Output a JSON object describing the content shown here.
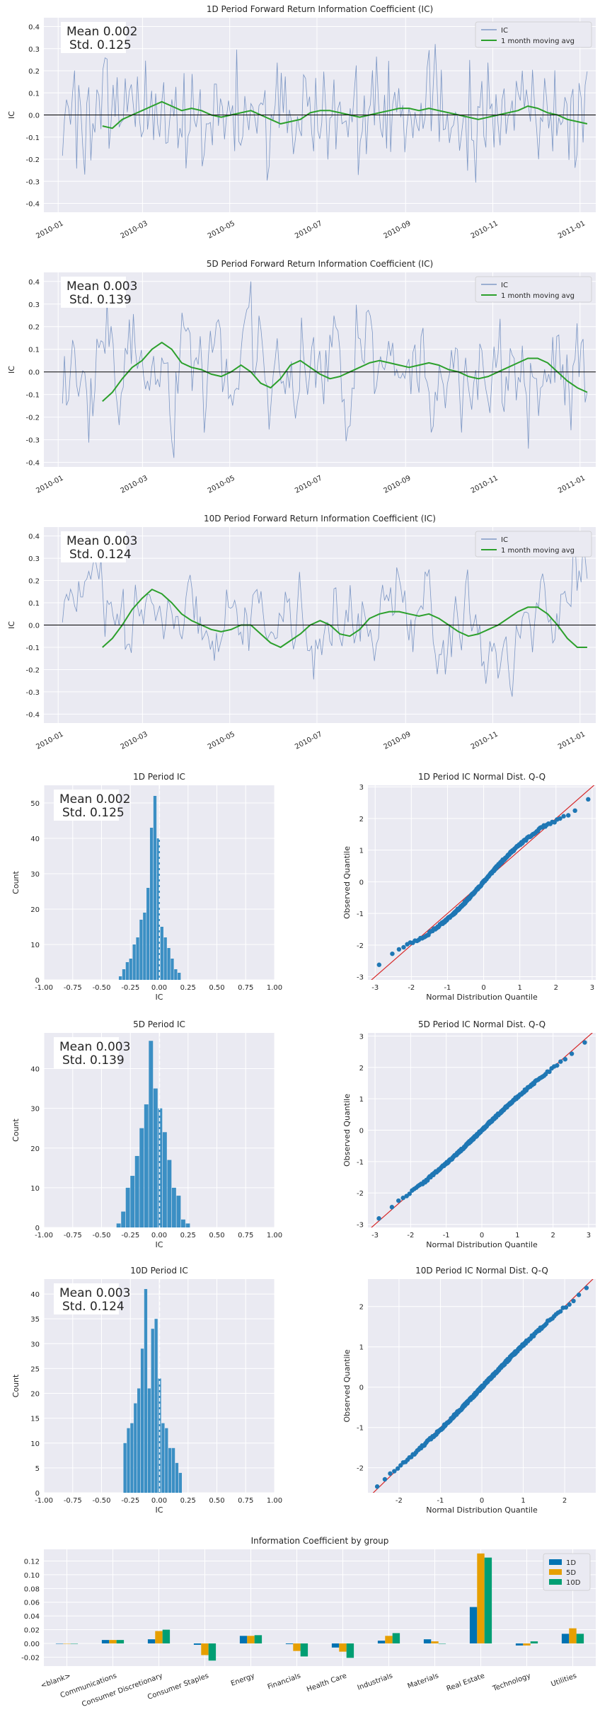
{
  "colors": {
    "background": "#ffffff",
    "axes_face": "#eaeaf2",
    "grid": "#ffffff",
    "ic_line": "#4c72b0",
    "moving_avg": "#2ca02c",
    "zero_line": "#000000",
    "histogram": "#3b8fc4",
    "mean_line": "#ffffff",
    "qq_points": "#1f77b4",
    "qq_reference": "#d62728",
    "text": "#262626",
    "group_1D": "#0072b2",
    "group_5D": "#e69f00",
    "group_10D": "#009e73"
  },
  "chart_data": [
    {
      "id": "ts1",
      "type": "line",
      "title": "1D Period Forward Return Information Coefficient (IC)",
      "ylabel": "IC",
      "xlabel": "",
      "x_range": [
        "2009-12-22",
        "2011-01-12"
      ],
      "x_ticks": [
        "2010-01",
        "2010-03",
        "2010-05",
        "2010-07",
        "2010-09",
        "2010-11",
        "2011-01"
      ],
      "ylim": [
        -0.44,
        0.44
      ],
      "y_ticks": [
        -0.4,
        -0.3,
        -0.2,
        -0.1,
        0.0,
        0.1,
        0.2,
        0.3,
        0.4
      ],
      "legend": [
        "IC",
        "1 month moving avg"
      ],
      "legend_position": "top-right",
      "stats_text": [
        "Mean 0.002",
        "Std. 0.125"
      ],
      "series": [
        {
          "name": "IC",
          "start": "2010-01-04",
          "end": "2011-01-06",
          "count": 260,
          "std": 0.125,
          "mean": 0.002,
          "seed": 101,
          "smooth": 0.0
        },
        {
          "name": "1 month moving avg",
          "start": "2010-02-01",
          "end": "2011-01-06",
          "values": [
            -0.05,
            -0.06,
            -0.02,
            0.0,
            0.02,
            0.04,
            0.06,
            0.04,
            0.02,
            0.03,
            0.02,
            0.0,
            -0.01,
            0.0,
            0.01,
            0.02,
            0.0,
            -0.02,
            -0.04,
            -0.03,
            -0.02,
            0.01,
            0.02,
            0.02,
            0.01,
            0.0,
            -0.01,
            0.0,
            0.01,
            0.02,
            0.03,
            0.03,
            0.02,
            0.03,
            0.02,
            0.01,
            0.0,
            -0.01,
            -0.02,
            -0.01,
            0.0,
            0.01,
            0.02,
            0.04,
            0.03,
            0.01,
            0.0,
            -0.02,
            -0.03,
            -0.04
          ]
        }
      ]
    },
    {
      "id": "ts5",
      "type": "line",
      "title": "5D Period Forward Return Information Coefficient (IC)",
      "ylabel": "IC",
      "xlabel": "",
      "x_range": [
        "2009-12-22",
        "2011-01-12"
      ],
      "x_ticks": [
        "2010-01",
        "2010-03",
        "2010-05",
        "2010-07",
        "2010-09",
        "2010-11",
        "2011-01"
      ],
      "ylim": [
        -0.42,
        0.44
      ],
      "y_ticks": [
        -0.4,
        -0.3,
        -0.2,
        -0.1,
        0.0,
        0.1,
        0.2,
        0.3,
        0.4
      ],
      "legend": [
        "IC",
        "1 month moving avg"
      ],
      "legend_position": "top-right",
      "stats_text": [
        "Mean 0.003",
        "Std. 0.139"
      ],
      "series": [
        {
          "name": "IC",
          "start": "2010-01-04",
          "end": "2011-01-06",
          "count": 260,
          "std": 0.139,
          "mean": 0.003,
          "seed": 202,
          "smooth": 0.55
        },
        {
          "name": "1 month moving avg",
          "start": "2010-02-01",
          "end": "2011-01-06",
          "values": [
            -0.13,
            -0.09,
            -0.03,
            0.02,
            0.05,
            0.1,
            0.13,
            0.1,
            0.04,
            0.02,
            0.01,
            -0.01,
            -0.02,
            0.0,
            0.03,
            0.0,
            -0.05,
            -0.07,
            -0.03,
            0.03,
            0.05,
            0.02,
            -0.01,
            -0.03,
            -0.02,
            0.0,
            0.02,
            0.04,
            0.05,
            0.04,
            0.03,
            0.02,
            0.03,
            0.04,
            0.03,
            0.01,
            0.0,
            -0.02,
            -0.03,
            -0.02,
            0.0,
            0.02,
            0.04,
            0.06,
            0.06,
            0.04,
            0.0,
            -0.04,
            -0.07,
            -0.09
          ]
        }
      ]
    },
    {
      "id": "ts10",
      "type": "line",
      "title": "10D Period Forward Return Information Coefficient (IC)",
      "ylabel": "IC",
      "xlabel": "",
      "x_range": [
        "2009-12-22",
        "2011-01-12"
      ],
      "x_ticks": [
        "2010-01",
        "2010-03",
        "2010-05",
        "2010-07",
        "2010-09",
        "2010-11",
        "2011-01"
      ],
      "ylim": [
        -0.44,
        0.44
      ],
      "y_ticks": [
        -0.4,
        -0.3,
        -0.2,
        -0.1,
        0.0,
        0.1,
        0.2,
        0.3,
        0.4
      ],
      "legend": [
        "IC",
        "1 month moving avg"
      ],
      "legend_position": "top-right",
      "stats_text": [
        "Mean 0.003",
        "Std. 0.124"
      ],
      "series": [
        {
          "name": "IC",
          "start": "2010-01-04",
          "end": "2011-01-06",
          "count": 260,
          "std": 0.124,
          "mean": 0.003,
          "seed": 303,
          "smooth": 0.75
        },
        {
          "name": "1 month moving avg",
          "start": "2010-02-01",
          "end": "2011-01-06",
          "values": [
            -0.1,
            -0.06,
            0.0,
            0.07,
            0.12,
            0.16,
            0.14,
            0.1,
            0.05,
            0.02,
            0.0,
            -0.02,
            -0.03,
            -0.02,
            0.0,
            0.0,
            -0.04,
            -0.08,
            -0.1,
            -0.07,
            -0.04,
            0.0,
            0.02,
            0.0,
            -0.04,
            -0.05,
            -0.02,
            0.03,
            0.05,
            0.06,
            0.06,
            0.05,
            0.04,
            0.05,
            0.03,
            0.0,
            -0.03,
            -0.05,
            -0.04,
            -0.02,
            0.0,
            0.03,
            0.06,
            0.08,
            0.08,
            0.05,
            0.0,
            -0.06,
            -0.1,
            -0.1
          ]
        }
      ]
    },
    {
      "id": "hist1",
      "type": "bar",
      "title": "1D Period IC",
      "xlabel": "IC",
      "ylabel": "Count",
      "xlim": [
        -1.0,
        1.0
      ],
      "x_ticks": [
        -1.0,
        -0.75,
        -0.5,
        -0.25,
        0.0,
        0.25,
        0.5,
        0.75,
        1.0
      ],
      "ylim": [
        0,
        55
      ],
      "y_ticks": [
        0,
        10,
        20,
        30,
        40,
        50
      ],
      "stats_text": [
        "Mean 0.002",
        "Std. 0.125"
      ],
      "mean": 0.002,
      "bin_start": -0.35,
      "bin_width": 0.03,
      "values": [
        1,
        3,
        5,
        6,
        10,
        12,
        17,
        19,
        26,
        43,
        52,
        40,
        15,
        12,
        9,
        6,
        3,
        2
      ]
    },
    {
      "id": "qq1",
      "type": "scatter",
      "title": "1D Period IC Normal Dist. Q-Q",
      "xlabel": "Normal Distribution Quantile",
      "ylabel": "Observed Quantile",
      "xlim": [
        -3.2,
        3.1
      ],
      "ylim": [
        -3.1,
        3.05
      ],
      "x_ticks": [
        -3,
        -2,
        -1,
        0,
        1,
        2,
        3
      ],
      "y_ticks": [
        -3,
        -2,
        -1,
        0,
        1,
        2,
        3
      ],
      "n_points": 260,
      "distortion": 0.18,
      "seed": 11
    },
    {
      "id": "hist5",
      "type": "bar",
      "title": "5D Period IC",
      "xlabel": "IC",
      "ylabel": "Count",
      "xlim": [
        -1.0,
        1.0
      ],
      "x_ticks": [
        -1.0,
        -0.75,
        -0.5,
        -0.25,
        0.0,
        0.25,
        0.5,
        0.75,
        1.0
      ],
      "ylim": [
        0,
        49
      ],
      "y_ticks": [
        0,
        10,
        20,
        30,
        40
      ],
      "stats_text": [
        "Mean 0.003",
        "Std. 0.139"
      ],
      "mean": 0.003,
      "bin_start": -0.37,
      "bin_width": 0.04,
      "values": [
        1,
        4,
        10,
        13,
        18,
        25,
        31,
        47,
        35,
        30,
        24,
        17,
        10,
        8,
        2,
        1
      ]
    },
    {
      "id": "qq5",
      "type": "scatter",
      "title": "5D Period IC Normal Dist. Q-Q",
      "xlabel": "Normal Distribution Quantile",
      "ylabel": "Observed Quantile",
      "xlim": [
        -3.2,
        3.2
      ],
      "ylim": [
        -3.1,
        3.1
      ],
      "x_ticks": [
        -3,
        -2,
        -1,
        0,
        1,
        2,
        3
      ],
      "y_ticks": [
        -3,
        -2,
        -1,
        0,
        1,
        2,
        3
      ],
      "n_points": 260,
      "distortion": 0.06,
      "seed": 22
    },
    {
      "id": "hist10",
      "type": "bar",
      "title": "10D Period IC",
      "xlabel": "IC",
      "ylabel": "Count",
      "xlim": [
        -1.0,
        1.0
      ],
      "x_ticks": [
        -1.0,
        -0.75,
        -0.5,
        -0.25,
        0.0,
        0.25,
        0.5,
        0.75,
        1.0
      ],
      "ylim": [
        0,
        43
      ],
      "y_ticks": [
        0,
        5,
        10,
        15,
        20,
        25,
        30,
        35,
        40
      ],
      "stats_text": [
        "Mean 0.003",
        "Std. 0.124"
      ],
      "mean": 0.003,
      "bin_start": -0.31,
      "bin_width": 0.03,
      "values": [
        10,
        13,
        14,
        18,
        21,
        29,
        41,
        21,
        33,
        35,
        23,
        14,
        13,
        9,
        9,
        6,
        4
      ]
    },
    {
      "id": "qq10",
      "type": "scatter",
      "title": "10D Period IC Normal Dist. Q-Q",
      "xlabel": "Normal Distribution Quantile",
      "ylabel": "Observed Quantile",
      "xlim": [
        -2.75,
        2.75
      ],
      "ylim": [
        -2.62,
        2.68
      ],
      "x_ticks": [
        -2,
        -1,
        0,
        1,
        2
      ],
      "y_ticks": [
        -2,
        -1,
        0,
        1,
        2
      ],
      "n_points": 260,
      "distortion": 0.05,
      "seed": 33
    },
    {
      "id": "group",
      "type": "bar",
      "title": "Information Coefficient by group",
      "xlabel": "",
      "ylabel": "",
      "ylim": [
        -0.033,
        0.137
      ],
      "y_ticks": [
        -0.02,
        0.0,
        0.02,
        0.04,
        0.06,
        0.08,
        0.1,
        0.12
      ],
      "categories": [
        "<blank>",
        "Communications",
        "Consumer Discretionary",
        "Consumer Staples",
        "Energy",
        "Financials",
        "Health Care",
        "Industrials",
        "Materials",
        "Real Estate",
        "Technology",
        "Utilities"
      ],
      "legend_position": "top-right",
      "series": [
        {
          "name": "1D",
          "values": [
            0.0,
            0.005,
            0.006,
            -0.002,
            0.011,
            -0.001,
            -0.006,
            0.004,
            0.006,
            0.053,
            -0.003,
            0.014
          ]
        },
        {
          "name": "5D",
          "values": [
            0.0,
            0.005,
            0.018,
            -0.017,
            0.011,
            -0.011,
            -0.012,
            0.011,
            0.003,
            0.131,
            -0.003,
            0.022
          ]
        },
        {
          "name": "10D",
          "values": [
            0.0,
            0.005,
            0.02,
            -0.025,
            0.012,
            -0.019,
            -0.021,
            0.015,
            0.0,
            0.125,
            0.003,
            0.014
          ]
        }
      ]
    }
  ]
}
